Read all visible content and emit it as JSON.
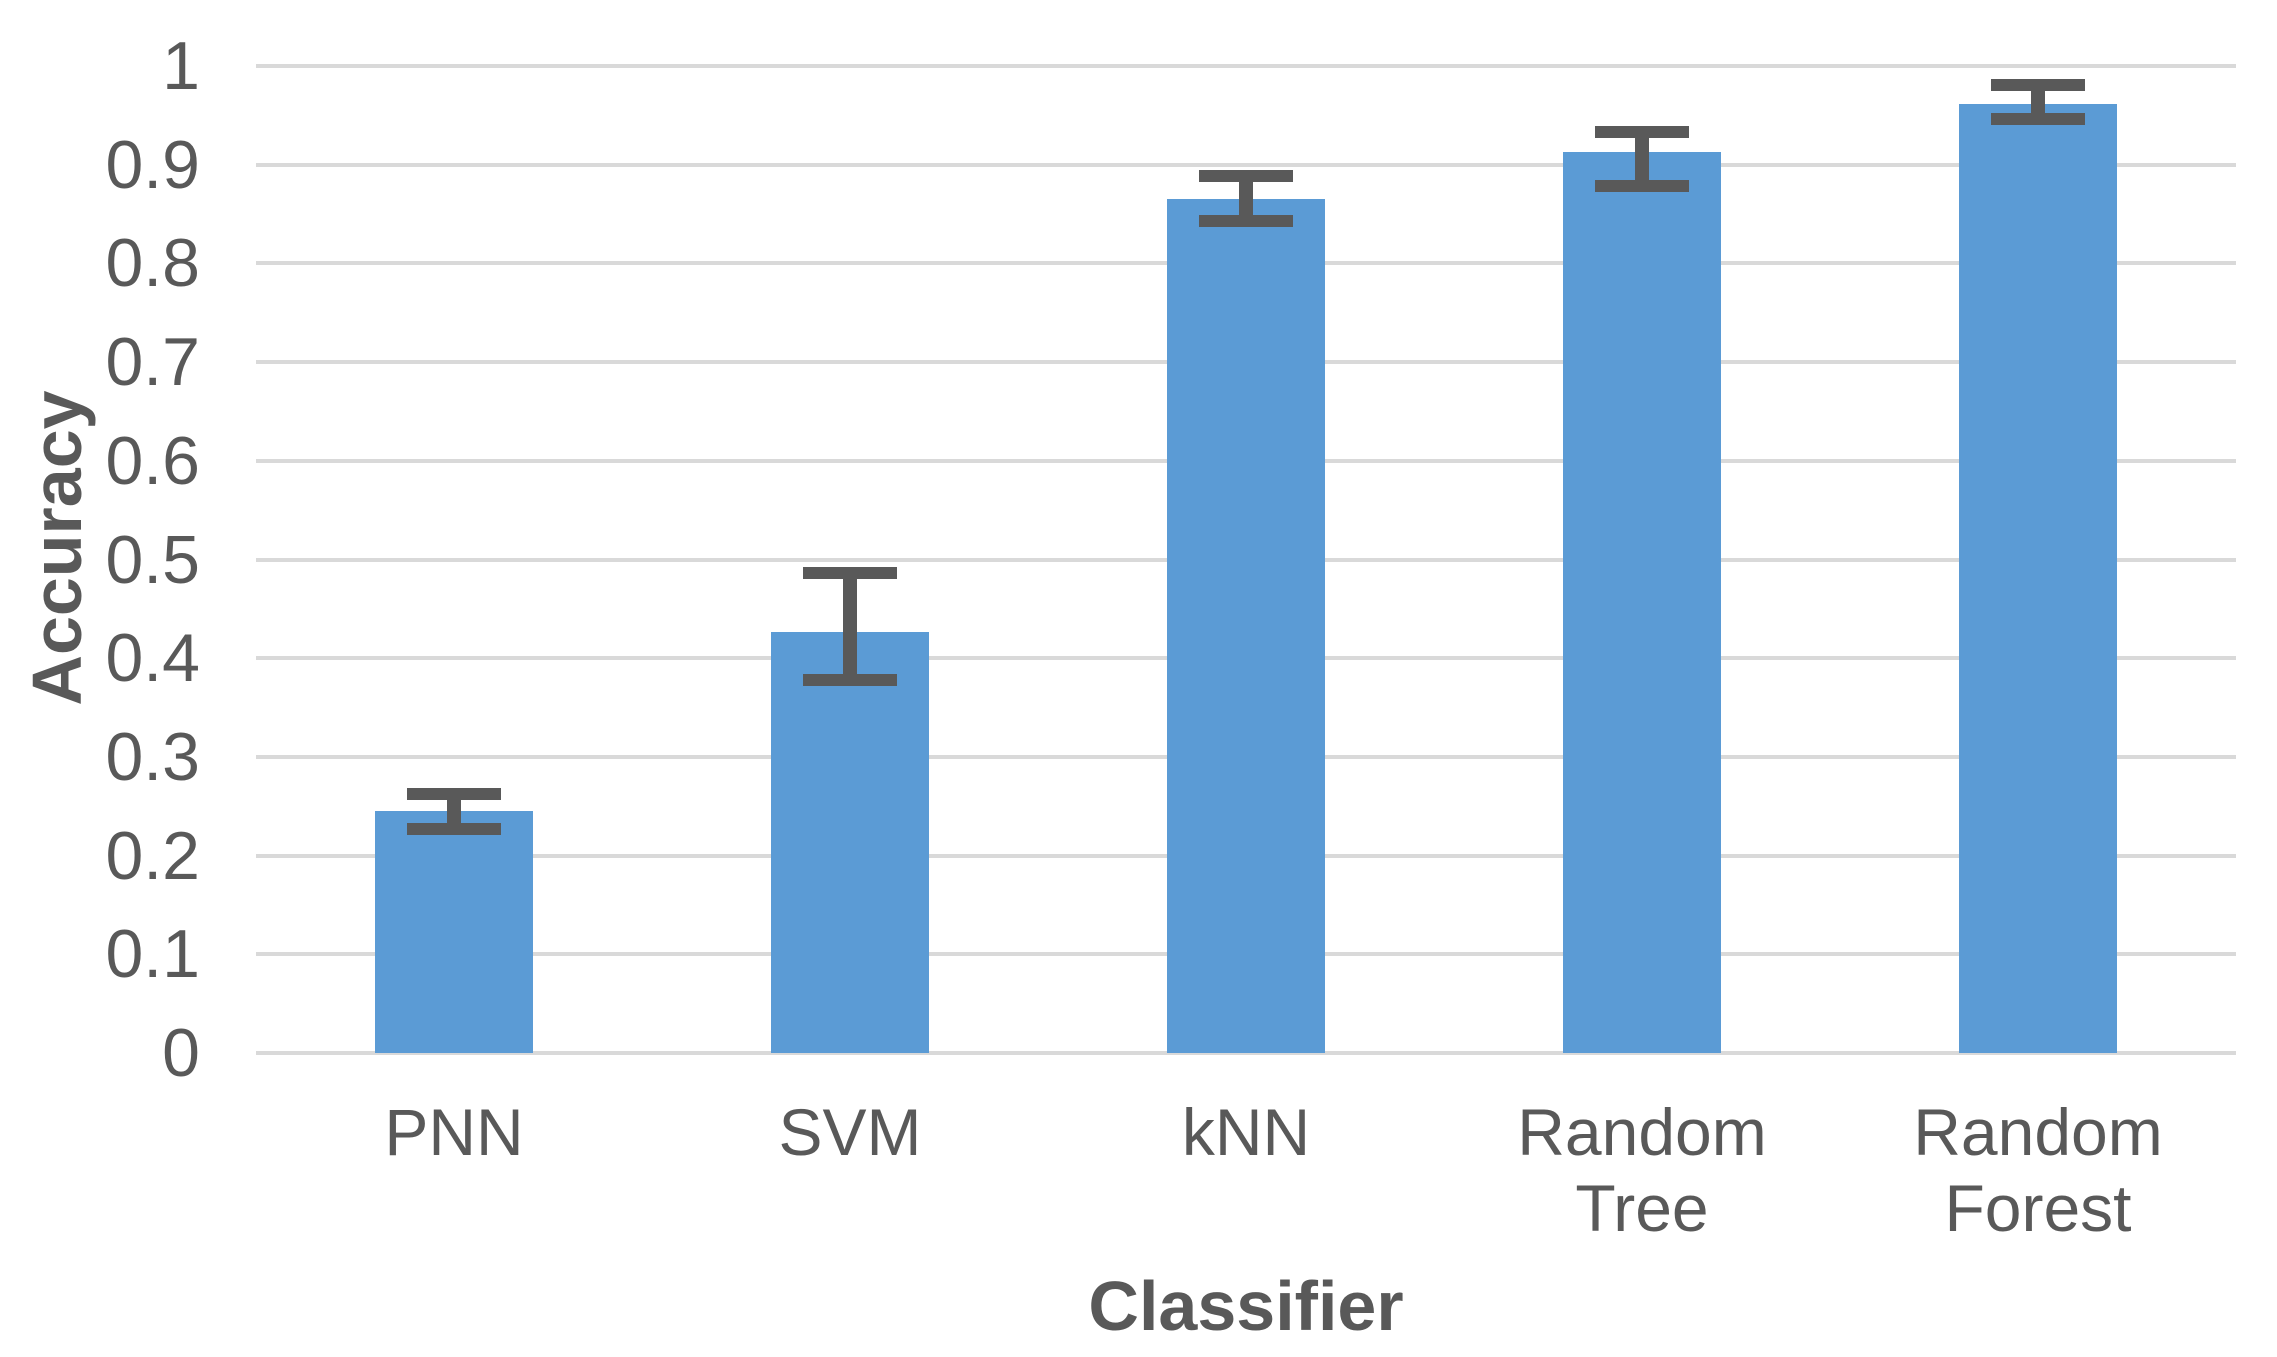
{
  "chart_data": {
    "type": "bar",
    "title": "",
    "xlabel": "Classifier",
    "ylabel": "Accuracy",
    "categories": [
      "PNN",
      "SVM",
      "kNN",
      "Random Tree",
      "Random Forest"
    ],
    "category_display": [
      "PNN",
      "SVM",
      "kNN",
      "Random\nTree",
      "Random\nForest"
    ],
    "values": [
      0.245,
      0.427,
      0.865,
      0.913,
      0.961
    ],
    "error_whisker_top": [
      0.262,
      0.486,
      0.889,
      0.933,
      0.981
    ],
    "error_whisker_bottom": [
      0.227,
      0.378,
      0.843,
      0.878,
      0.946
    ],
    "ylim": [
      0,
      1
    ],
    "ytick_values": [
      1,
      0.9,
      0.8,
      0.7,
      0.6,
      0.5,
      0.4,
      0.3,
      0.2,
      0.1,
      0
    ],
    "ytick_labels": [
      "1",
      "0.9",
      "0.8",
      "0.7",
      "0.6",
      "0.5",
      "0.4",
      "0.3",
      "0.2",
      "0.1",
      "0"
    ],
    "grid": "horizontal",
    "legend": "none",
    "colors": {
      "bar": "#5B9BD5",
      "error_bar": "#595959",
      "gridline": "#D9D9D9",
      "text": "#595959",
      "background": "#FFFFFF"
    }
  }
}
